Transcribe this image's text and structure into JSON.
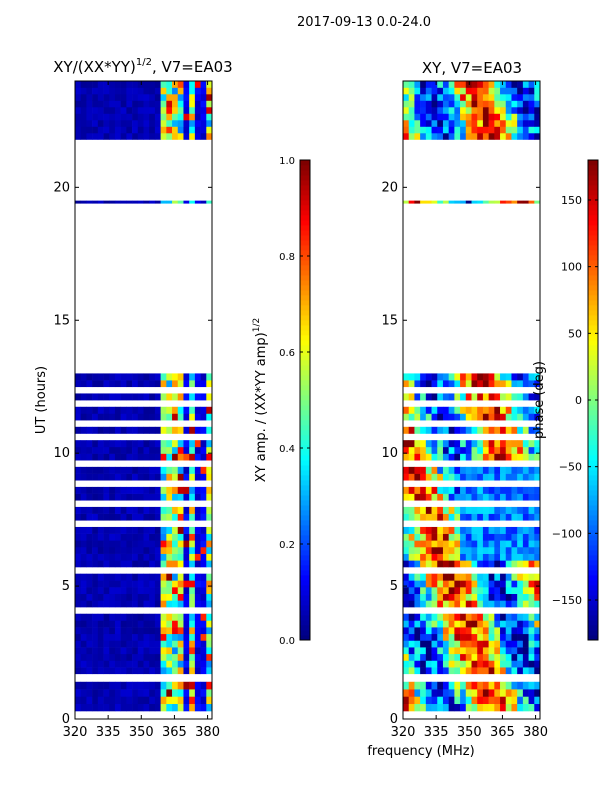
{
  "figure": {
    "suptitle": "2017-09-13 0.0-24.0",
    "xlabel": "frequency (MHz)",
    "colors": {
      "jet": [
        "#00007f",
        "#0000ff",
        "#007fff",
        "#00ffff",
        "#7fff7f",
        "#ffff00",
        "#ff7f00",
        "#ff0000",
        "#7f0000"
      ]
    }
  },
  "chart_data": [
    {
      "type": "heatmap",
      "title": "XY/(XX*YY)",
      "title_exponent": "1/2",
      "title_suffix": ", V7=EA03",
      "xlabel": "",
      "ylabel": "UT (hours)",
      "xlim": [
        320,
        382
      ],
      "ylim": [
        0,
        24
      ],
      "xticks": [
        320,
        335,
        350,
        365,
        380
      ],
      "yticks": [
        0,
        5,
        10,
        15,
        20
      ],
      "colorbar": {
        "label": "XY amp. / (XX*YY amp)",
        "label_exponent": "1/2",
        "clim": [
          0.0,
          1.0
        ],
        "ticks": [
          0.0,
          0.2,
          0.4,
          0.6,
          0.8,
          1.0
        ],
        "tick_labels": [
          "0.0",
          "0.2",
          "0.4",
          "0.6",
          "0.8",
          "1.0"
        ]
      },
      "data_time_ranges_hours": [
        [
          0.3,
          1.4
        ],
        [
          1.7,
          13.0
        ],
        [
          19.4,
          19.5
        ],
        [
          21.8,
          24.0
        ]
      ],
      "high_value_freq_band_mhz": [
        360,
        382
      ],
      "description_values": "low amplitude (~0.05) below 360 MHz, patchy 0.3-1.0 in 360-382 MHz"
    },
    {
      "type": "heatmap",
      "title": "XY, V7=EA03",
      "xlabel": "",
      "ylabel": "",
      "xlim": [
        320,
        382
      ],
      "ylim": [
        0,
        24
      ],
      "xticks": [
        320,
        335,
        350,
        365,
        380
      ],
      "yticks": [
        0,
        5,
        10,
        15,
        20
      ],
      "colorbar": {
        "label": "phase (deg)",
        "clim": [
          -180,
          180
        ],
        "ticks": [
          -150,
          -100,
          -50,
          0,
          50,
          100,
          150
        ],
        "tick_labels": [
          "−150",
          "−100",
          "−50",
          "0",
          "50",
          "100",
          "150"
        ]
      },
      "data_time_ranges_hours": [
        [
          0.3,
          1.4
        ],
        [
          1.7,
          13.0
        ],
        [
          19.4,
          19.5
        ],
        [
          21.8,
          24.0
        ]
      ]
    }
  ]
}
